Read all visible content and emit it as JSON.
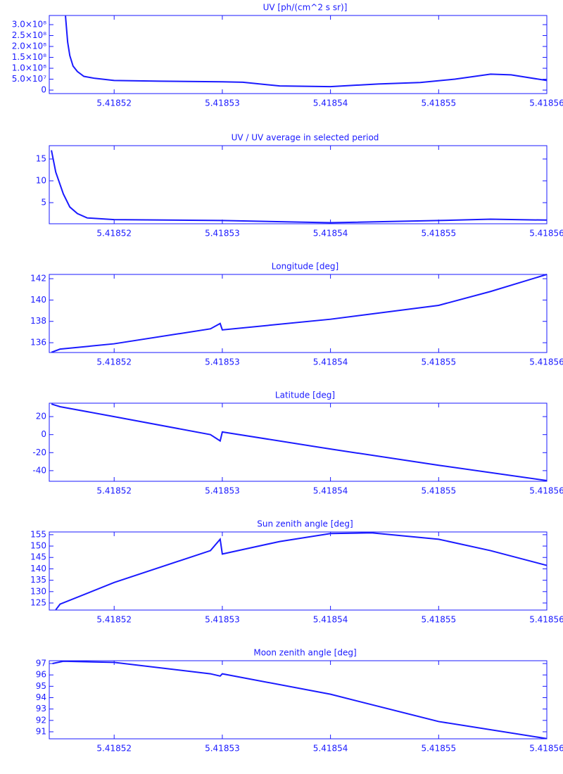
{
  "chart_data": [
    {
      "type": "line",
      "title": "UV [ph/(cm^2 s sr)]",
      "color": "#1a1aff",
      "xlim": [
        5.418514,
        5.41856
      ],
      "xticks": [
        5.41852,
        5.41853,
        5.41854,
        5.41855,
        5.41856
      ],
      "ylim": [
        -16000000,
        342000000
      ],
      "yticks": [
        0,
        {
          "value": 50000000,
          "label": "5.0×10⁷"
        },
        {
          "value": 100000000,
          "label": "1.0×10⁸"
        },
        {
          "value": 150000000,
          "label": "1.5×10⁸"
        },
        {
          "value": 200000000,
          "label": "2.0×10⁸"
        },
        {
          "value": 250000000,
          "label": "2.5×10⁸"
        },
        {
          "value": 300000000,
          "label": "3.0×10⁸"
        }
      ],
      "x": [
        5.4185155,
        5.4185157,
        5.4185159,
        5.4185162,
        5.4185166,
        5.4185172,
        5.4185182,
        5.41852,
        5.4185243,
        5.41853,
        5.4185319,
        5.4185353,
        5.41854,
        5.4185444,
        5.4185483,
        5.4185515,
        5.4185548,
        5.4185567,
        5.41856
      ],
      "values": [
        340000000,
        220000000,
        158000000,
        110000000,
        85000000,
        63000000,
        54000000,
        44000000,
        41000000,
        38000000,
        36000000,
        19000000,
        16000000,
        28000000,
        35000000,
        50000000,
        73000000,
        70000000,
        44000000
      ]
    },
    {
      "type": "line",
      "title": "UV / UV average in selected period",
      "color": "#1a1aff",
      "xlim": [
        5.418514,
        5.41856
      ],
      "xticks": [
        5.41852,
        5.41853,
        5.41854,
        5.41855,
        5.41856
      ],
      "ylim": [
        0.16,
        18.06
      ],
      "yticks": [
        5,
        10,
        15
      ],
      "x": [
        5.4185142,
        5.4185146,
        5.4185153,
        5.4185159,
        5.4185166,
        5.4185175,
        5.41852,
        5.41853,
        5.41854,
        5.41855,
        5.4185548,
        5.41856
      ],
      "values": [
        17,
        12,
        7,
        4,
        2.5,
        1.5,
        1.1,
        0.9,
        0.4,
        0.9,
        1.2,
        1.0
      ]
    },
    {
      "type": "line",
      "title": "Longitude [deg]",
      "color": "#1a1aff",
      "xlim": [
        5.418514,
        5.41856
      ],
      "xticks": [
        5.41852,
        5.41853,
        5.41854,
        5.41855,
        5.41856
      ],
      "ylim": [
        135.08,
        142.4
      ],
      "yticks": [
        136,
        138,
        140,
        142
      ],
      "x": [
        5.4185142,
        5.418515,
        5.41852,
        5.4185289,
        5.4185298,
        5.41853,
        5.41854,
        5.41855,
        5.4185548,
        5.41856
      ],
      "values": [
        135.1,
        135.4,
        135.9,
        137.3,
        137.8,
        137.2,
        138.2,
        139.5,
        140.8,
        142.4
      ]
    },
    {
      "type": "line",
      "title": "Latitude [deg]",
      "color": "#1a1aff",
      "xlim": [
        5.418514,
        5.41856
      ],
      "xticks": [
        5.41852,
        5.41853,
        5.41854,
        5.41855,
        5.41856
      ],
      "ylim": [
        -51.8,
        34.9
      ],
      "yticks": [
        -40,
        -20,
        0,
        20
      ],
      "x": [
        5.4185142,
        5.418515,
        5.41852,
        5.4185289,
        5.4185298,
        5.41853,
        5.41854,
        5.41855,
        5.41856
      ],
      "values": [
        34,
        31,
        20,
        0,
        -7,
        3,
        -16,
        -34,
        -51
      ]
    },
    {
      "type": "line",
      "title": "Sun zenith angle [deg]",
      "color": "#1a1aff",
      "xlim": [
        5.418514,
        5.41856
      ],
      "xticks": [
        5.41852,
        5.41853,
        5.41854,
        5.41855,
        5.41856
      ],
      "ylim": [
        121.9,
        156.2
      ],
      "yticks": [
        125,
        130,
        135,
        140,
        145,
        150,
        155
      ],
      "x": [
        5.4185146,
        5.418515,
        5.41852,
        5.4185289,
        5.4185298,
        5.41853,
        5.4185353,
        5.41854,
        5.4185438,
        5.41855,
        5.4185548,
        5.41856
      ],
      "values": [
        122,
        124.5,
        134,
        148,
        153,
        146.5,
        152,
        155.5,
        155.8,
        153,
        148,
        141.5
      ]
    },
    {
      "type": "line",
      "title": "Moon zenith angle [deg]",
      "color": "#1a1aff",
      "xlim": [
        5.418514,
        5.41856
      ],
      "xticks": [
        5.41852,
        5.41853,
        5.41854,
        5.41855,
        5.41856
      ],
      "ylim": [
        90.38,
        97.25
      ],
      "yticks": [
        91,
        92,
        93,
        94,
        95,
        96,
        97
      ],
      "x": [
        5.4185143,
        5.4185153,
        5.41852,
        5.4185289,
        5.4185298,
        5.41853,
        5.41854,
        5.41855,
        5.41856
      ],
      "values": [
        97,
        97.2,
        97.1,
        96.1,
        95.9,
        96.1,
        94.3,
        91.9,
        90.4
      ]
    }
  ]
}
